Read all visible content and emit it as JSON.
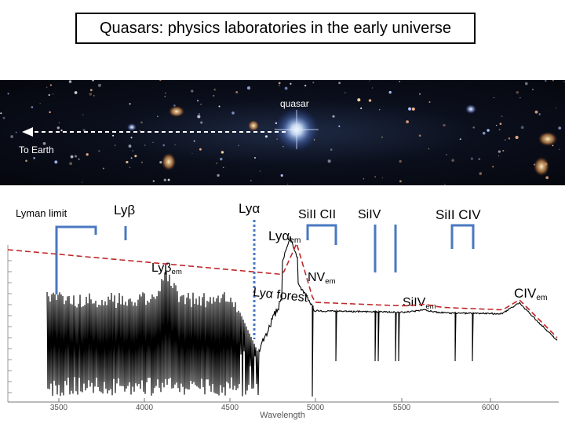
{
  "title": "Quasars: physics laboratories in the early universe",
  "image": {
    "quasar_label": "quasar",
    "earth_label": "To Earth"
  },
  "lines": {
    "lyman_limit": "Lyman limit",
    "ly_beta": "Lyβ",
    "ly_alpha": "Lyα",
    "siII_cII": "SiII  CII",
    "siIV": "SiIV",
    "siII_cIV": "SiII  CIV"
  },
  "emission": {
    "ly_alpha_base": "Lyα",
    "ly_alpha_sub": "em",
    "ly_beta_base": "Lyβ",
    "ly_beta_sub": "em",
    "nv_base": "NV",
    "nv_sub": "em",
    "siIV_base": "SiIV",
    "siIV_sub": "em",
    "civ_base": "CIV",
    "civ_sub": "em",
    "forest": "Lyα forest"
  },
  "axis": {
    "xlabel": "Wavelength",
    "ticks": [
      "3500",
      "4000",
      "4500",
      "5000",
      "5500",
      "6000"
    ]
  },
  "colors": {
    "sky_dark": "#05070d",
    "line_blue": "#4a78c0",
    "spectrum": "#000000",
    "continuum": "#c0282a"
  }
}
